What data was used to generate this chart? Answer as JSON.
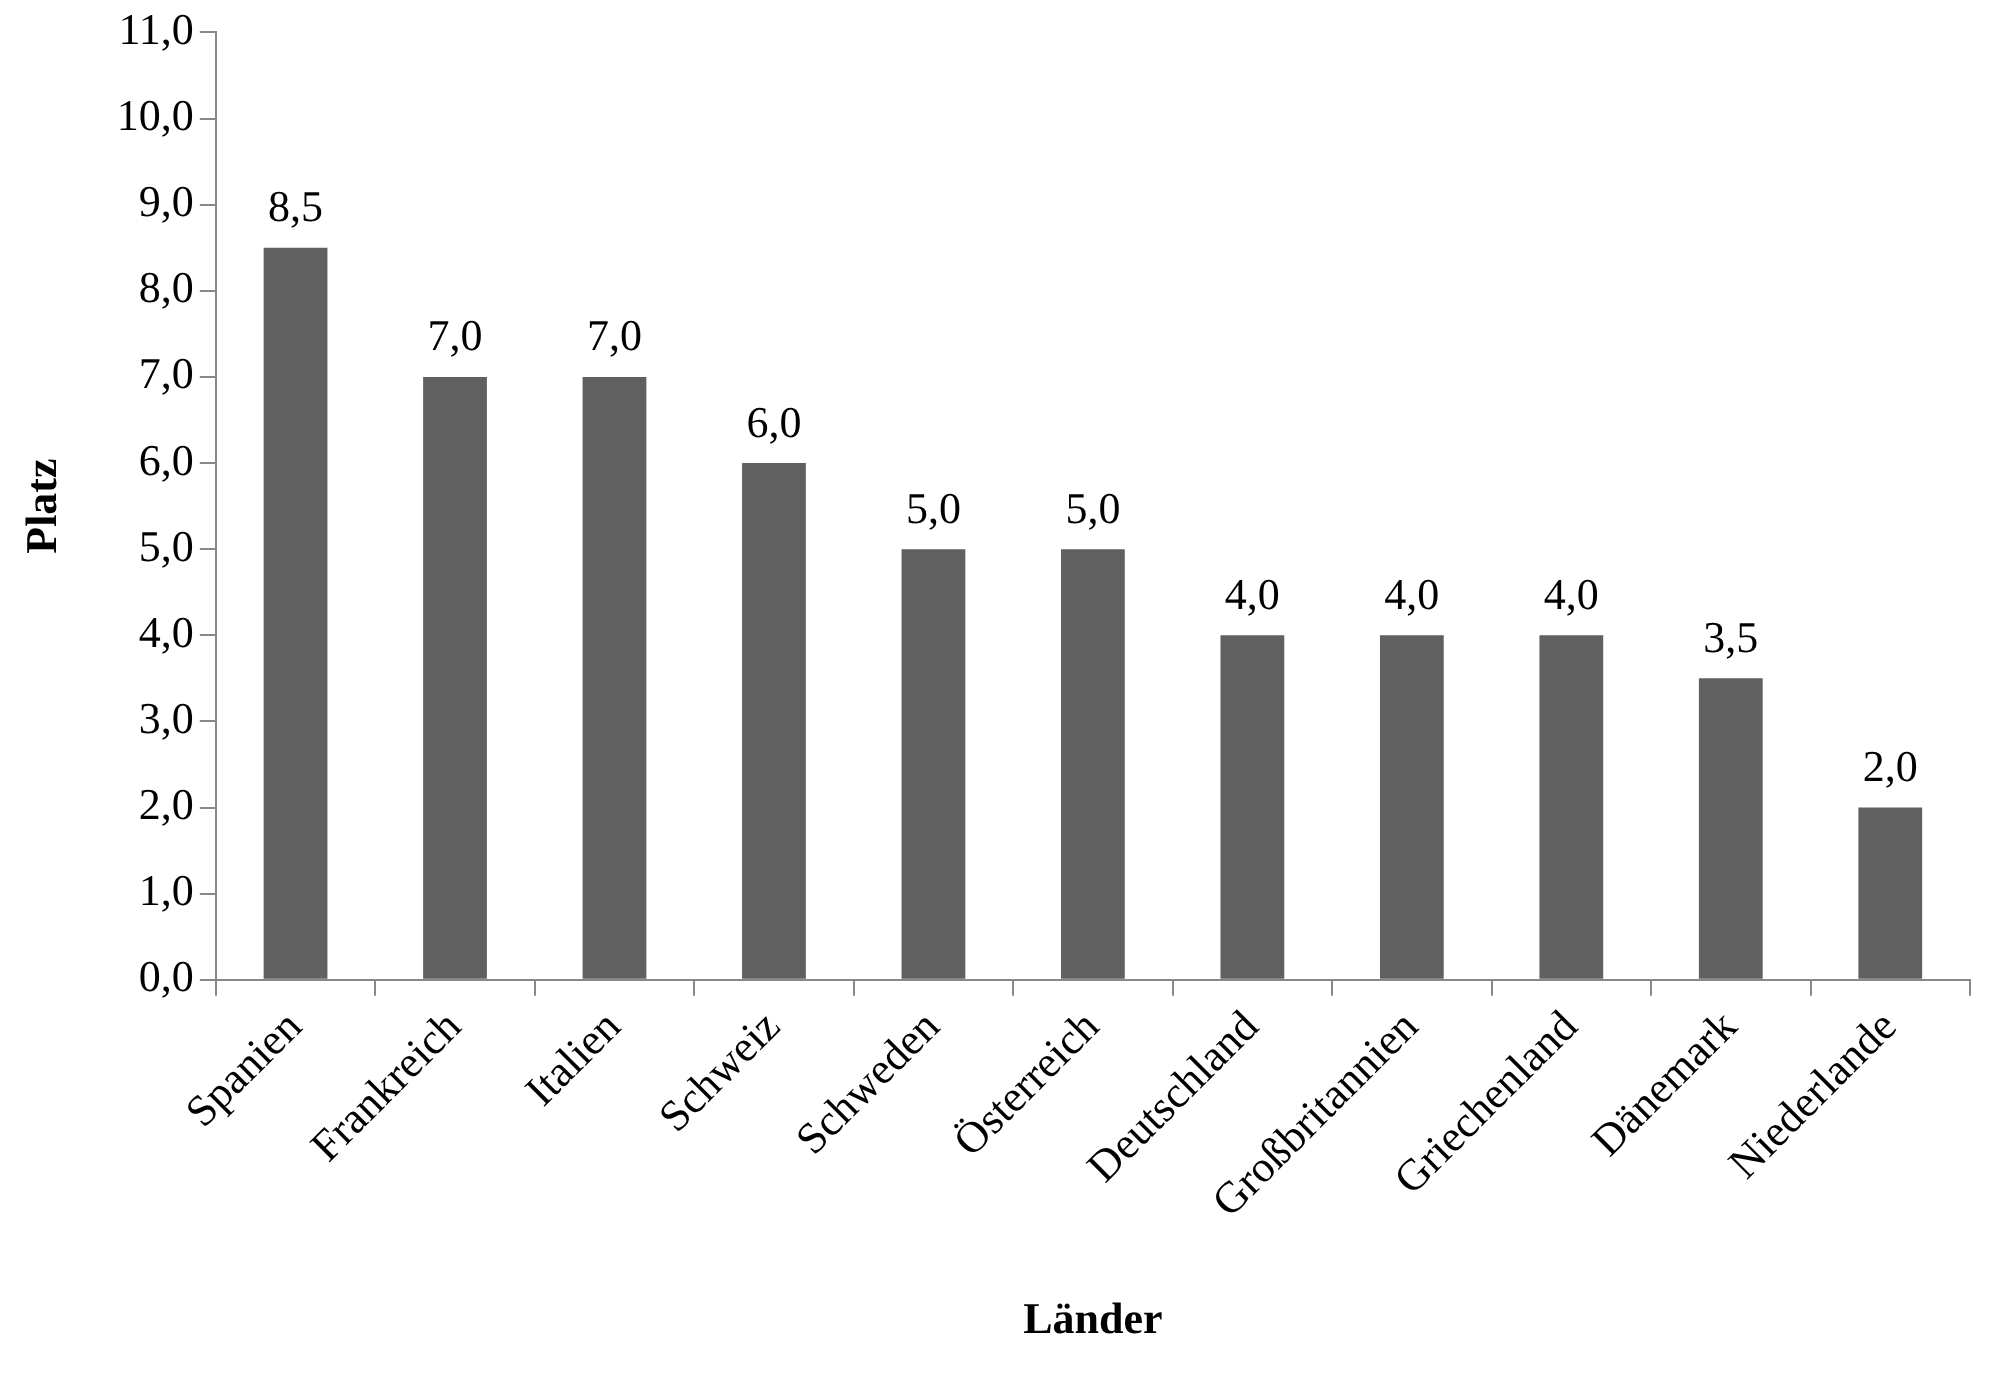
{
  "chart_data": {
    "type": "bar",
    "xlabel": "Länder",
    "ylabel": "Platz",
    "categories": [
      "Spanien",
      "Frankreich",
      "Italien",
      "Schweiz",
      "Schweden",
      "Österreich",
      "Deutschland",
      "Großbritannien",
      "Griechenland",
      "Dänemark",
      "Niederlande"
    ],
    "values": [
      8.5,
      7.0,
      7.0,
      6.0,
      5.0,
      5.0,
      4.0,
      4.0,
      4.0,
      3.5,
      2.0
    ],
    "value_labels": [
      "8,5",
      "7,0",
      "7,0",
      "6,0",
      "5,0",
      "5,0",
      "4,0",
      "4,0",
      "4,0",
      "3,5",
      "2,0"
    ],
    "color": "#606060",
    "ylim": [
      0,
      11
    ],
    "yticks": [
      {
        "value": 0,
        "label": "0,0"
      },
      {
        "value": 1,
        "label": "1,0"
      },
      {
        "value": 2,
        "label": "2,0"
      },
      {
        "value": 3,
        "label": "3,0"
      },
      {
        "value": 4,
        "label": "4,0"
      },
      {
        "value": 5,
        "label": "5,0"
      },
      {
        "value": 6,
        "label": "6,0"
      },
      {
        "value": 7,
        "label": "7,0"
      },
      {
        "value": 8,
        "label": "8,0"
      },
      {
        "value": 9,
        "label": "9,0"
      },
      {
        "value": 10,
        "label": "10,0"
      },
      {
        "value": 11,
        "label": "11,0"
      }
    ],
    "grid": false,
    "legend": false
  }
}
